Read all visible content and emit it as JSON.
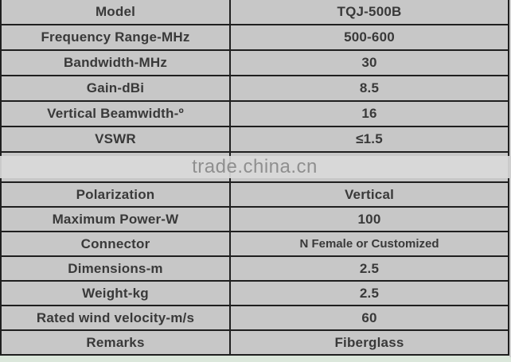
{
  "table": {
    "rows_top": [
      {
        "label": "Model",
        "value": "TQJ-500B"
      },
      {
        "label": "Frequency Range-MHz",
        "value": "500-600"
      },
      {
        "label": "Bandwidth-MHz",
        "value": "30"
      },
      {
        "label": "Gain-dBi",
        "value": "8.5"
      },
      {
        "label": "Vertical Beamwidth-º",
        "value": "16"
      },
      {
        "label": "VSWR",
        "value": "≤1.5"
      }
    ],
    "rows_bottom": [
      {
        "label": "Polarization",
        "value": "Vertical"
      },
      {
        "label": "Maximum Power-W",
        "value": "100"
      },
      {
        "label": "Connector",
        "value": "N Female or Customized",
        "small": true
      },
      {
        "label": "Dimensions-m",
        "value": "2.5"
      },
      {
        "label": "Weight-kg",
        "value": "2.5"
      },
      {
        "label": "Rated wind velocity-m/s",
        "value": "60"
      },
      {
        "label": "Remarks",
        "value": "Fiberglass"
      }
    ]
  },
  "watermark": {
    "text": "trade.china.cn"
  },
  "colors": {
    "cell_background": "#c7c7c7",
    "border": "#1f1f1f",
    "label_text": "#393939",
    "watermark_band": "#d9d9d9",
    "watermark_text": "#8f8f8f",
    "bottom_strip": "#dbe7db"
  }
}
